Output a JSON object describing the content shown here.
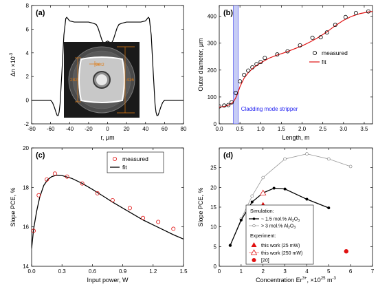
{
  "chart_data": [
    {
      "id": "a",
      "type": "line",
      "panel_label": "(a)",
      "xlabel": "r, μm",
      "ylabel": "Δn ×10",
      "ylabel_sup": "-3",
      "xlim": [
        -80,
        80
      ],
      "ylim": [
        -2,
        8
      ],
      "xticks": [
        -80,
        -60,
        -40,
        -20,
        0,
        20,
        40,
        60,
        80
      ],
      "yticks": [
        -2,
        0,
        2,
        4,
        6,
        8
      ],
      "series": [
        {
          "x": [
            -80,
            -60,
            -58,
            -56,
            -54,
            -53,
            -52,
            -51,
            -50,
            -48,
            -46,
            -44,
            -43,
            -42,
            -40,
            -35,
            -30,
            -25,
            -20,
            -15,
            -12,
            -10,
            -8,
            -6,
            -4,
            -2,
            0,
            2,
            4,
            6,
            8,
            10,
            12,
            15,
            20,
            25,
            30,
            35,
            40,
            42,
            43,
            44,
            46,
            48,
            50,
            51,
            52,
            53,
            54,
            56,
            58,
            60,
            80
          ],
          "y": [
            0,
            0,
            -0.2,
            -0.6,
            -1.1,
            -1.3,
            -1.3,
            -1.0,
            -0.3,
            2.5,
            5.5,
            6.9,
            7.0,
            6.9,
            6.7,
            6.6,
            6.6,
            6.6,
            6.6,
            6.5,
            6.4,
            6.1,
            5.6,
            5.1,
            4.8,
            4.9,
            5.0,
            4.9,
            4.8,
            5.1,
            5.6,
            6.1,
            6.4,
            6.5,
            6.6,
            6.6,
            6.6,
            6.6,
            6.7,
            6.9,
            7.0,
            6.9,
            5.5,
            2.5,
            -0.3,
            -1.0,
            -1.3,
            -1.3,
            -1.1,
            -0.6,
            -0.2,
            0,
            0
          ]
        }
      ],
      "inset": {
        "labels": [
          "282",
          "96.2",
          "416"
        ]
      }
    },
    {
      "id": "b",
      "type": "scatter",
      "panel_label": "(b)",
      "xlabel": "Length, m",
      "ylabel": "Outer diameter, μm",
      "xlim": [
        0,
        3.7
      ],
      "ylim": [
        0,
        440
      ],
      "xticks": [
        0.0,
        0.5,
        1.0,
        1.5,
        2.0,
        2.5,
        3.0,
        3.5
      ],
      "yticks": [
        0,
        100,
        200,
        300,
        400
      ],
      "band": {
        "x0": 0.34,
        "x1": 0.46,
        "label": "Cladding mode stripper"
      },
      "legend": [
        "measured",
        "fit"
      ],
      "measured": {
        "x": [
          0.0,
          0.12,
          0.22,
          0.3,
          0.4,
          0.5,
          0.6,
          0.7,
          0.8,
          0.9,
          1.0,
          1.1,
          1.4,
          1.65,
          1.95,
          2.25,
          2.45,
          2.6,
          2.8,
          3.05,
          3.3,
          3.6
        ],
        "y": [
          65,
          68,
          70,
          80,
          115,
          158,
          182,
          198,
          210,
          222,
          230,
          245,
          258,
          270,
          292,
          320,
          322,
          340,
          368,
          397,
          412,
          418
        ]
      },
      "fit": {
        "x": [
          0,
          0.1,
          0.2,
          0.3,
          0.35,
          0.4,
          0.45,
          0.5,
          0.6,
          0.7,
          0.8,
          0.9,
          1.0,
          1.2,
          1.4,
          1.6,
          1.8,
          2.0,
          2.2,
          2.4,
          2.6,
          2.8,
          3.0,
          3.2,
          3.4,
          3.6,
          3.7
        ],
        "y": [
          62,
          64,
          68,
          76,
          84,
          97,
          115,
          138,
          170,
          190,
          205,
          217,
          227,
          244,
          256,
          266,
          278,
          290,
          305,
          322,
          342,
          365,
          385,
          400,
          410,
          416,
          418
        ]
      }
    },
    {
      "id": "c",
      "type": "scatter",
      "panel_label": "(c)",
      "xlabel": "Input power, W",
      "ylabel": "Slope PCE, %",
      "xlim": [
        0,
        1.5
      ],
      "ylim": [
        14,
        20
      ],
      "xticks": [
        0.0,
        0.3,
        0.6,
        0.9,
        1.2,
        1.5
      ],
      "yticks": [
        14,
        16,
        18,
        20
      ],
      "legend": [
        "measured",
        "fit"
      ],
      "measured": {
        "x": [
          0.02,
          0.07,
          0.15,
          0.23,
          0.35,
          0.5,
          0.65,
          0.8,
          0.97,
          1.1,
          1.25,
          1.4
        ],
        "y": [
          15.8,
          17.6,
          18.4,
          18.7,
          18.55,
          18.2,
          17.7,
          17.35,
          16.95,
          16.45,
          16.25,
          15.9
        ]
      },
      "fit": {
        "x": [
          0.0,
          0.02,
          0.05,
          0.08,
          0.12,
          0.16,
          0.2,
          0.25,
          0.3,
          0.4,
          0.5,
          0.6,
          0.7,
          0.8,
          0.9,
          1.0,
          1.1,
          1.2,
          1.3,
          1.4,
          1.5
        ],
        "y": [
          14.9,
          15.9,
          16.8,
          17.5,
          18.1,
          18.4,
          18.55,
          18.62,
          18.6,
          18.45,
          18.2,
          17.9,
          17.58,
          17.25,
          16.95,
          16.65,
          16.35,
          16.1,
          15.85,
          15.6,
          15.38
        ]
      }
    },
    {
      "id": "d",
      "type": "scatter",
      "panel_label": "(d)",
      "xlabel": "Concentration Er",
      "xlabel_sup": "3+",
      "xlabel_tail": ", ×10",
      "xlabel_sup2": "25",
      "xlabel_unit": " m",
      "xlabel_sup3": "-3",
      "ylabel": "Slope PCE, %",
      "xlim": [
        0,
        7
      ],
      "ylim": [
        0,
        30
      ],
      "xticks": [
        0,
        1,
        2,
        3,
        4,
        5,
        6,
        7
      ],
      "yticks": [
        0,
        5,
        10,
        15,
        20,
        25
      ],
      "legend": {
        "sim_title": "Simulation:",
        "sim1": "~ 1.5 mol.% Al",
        "sim2": "> 3 mol.% Al",
        "sub2": "2",
        "sub3": "3",
        "oxide": "O",
        "exp_title": "Experiment:",
        "exp1": "this work  (25 mW)",
        "exp2": "this work  (250 mW)",
        "exp3": "[20]"
      },
      "sim_low_al": {
        "x": [
          0.5,
          1.0,
          1.5,
          2.0,
          2.5,
          3.0,
          4.0,
          5.0
        ],
        "y": [
          5.3,
          11.7,
          16.3,
          18.6,
          19.8,
          19.6,
          17.0,
          14.8
        ]
      },
      "sim_high_al": {
        "x": [
          0.5,
          1.0,
          1.5,
          2.0,
          3.0,
          4.0,
          5.0,
          6.0
        ],
        "y": [
          5.3,
          12.0,
          17.8,
          22.5,
          27.2,
          28.5,
          27.2,
          25.3
        ]
      },
      "exp_25mw": {
        "x": [
          2.0
        ],
        "y": [
          15.6
        ]
      },
      "exp_250mw": {
        "x": [
          2.0
        ],
        "y": [
          18.6
        ]
      },
      "ref20": {
        "x": [
          5.8
        ],
        "y": [
          3.8
        ]
      }
    }
  ]
}
